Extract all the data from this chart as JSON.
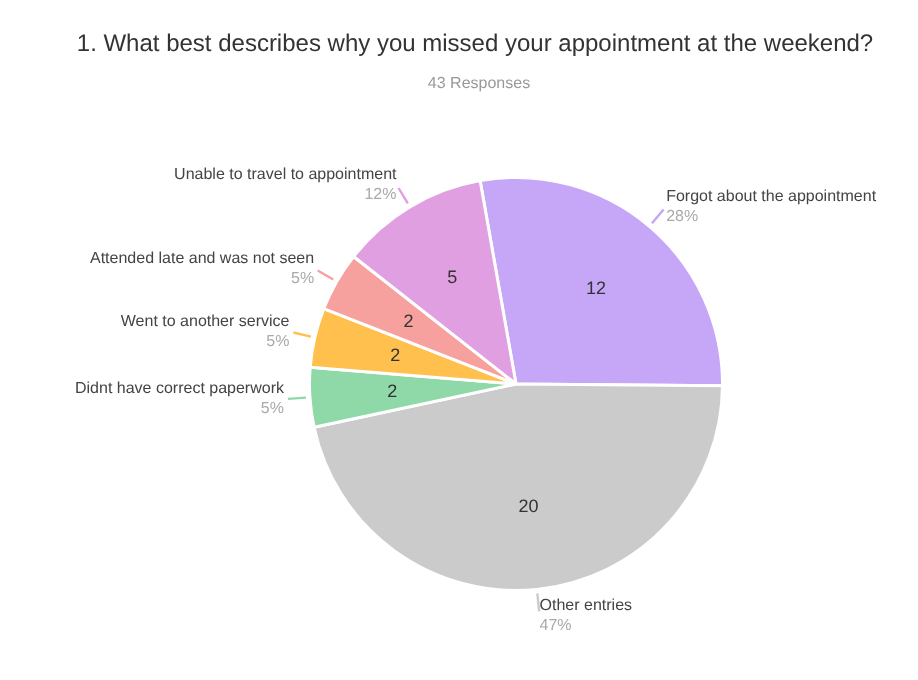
{
  "chart_data": {
    "type": "pie",
    "title": "1. What best describes why you missed your appointment at the weekend?",
    "subtitle": "43 Responses",
    "categories": [
      "Forgot about the appointment",
      "Other entries",
      "Didnt have correct paperwork",
      "Went to another service",
      "Attended late and was not seen",
      "Unable to travel to appointment"
    ],
    "values": [
      12,
      20,
      2,
      2,
      2,
      5
    ],
    "colors": [
      "#c5a6f7",
      "#cbcbcb",
      "#8fd9a8",
      "#ffc04e",
      "#f7a19f",
      "#e09fe0"
    ],
    "annotations": [
      {
        "text": "28%",
        "x": "Forgot about the appointment"
      },
      {
        "text": "47%",
        "x": "Other entries"
      },
      {
        "text": "5%",
        "x": "Didnt have correct paperwork"
      },
      {
        "text": "5%",
        "x": "Went to another service"
      },
      {
        "text": "5%",
        "x": "Attended late and was not seen"
      },
      {
        "text": "12%",
        "x": "Unable to travel to appointment"
      }
    ],
    "data_labels": true
  }
}
